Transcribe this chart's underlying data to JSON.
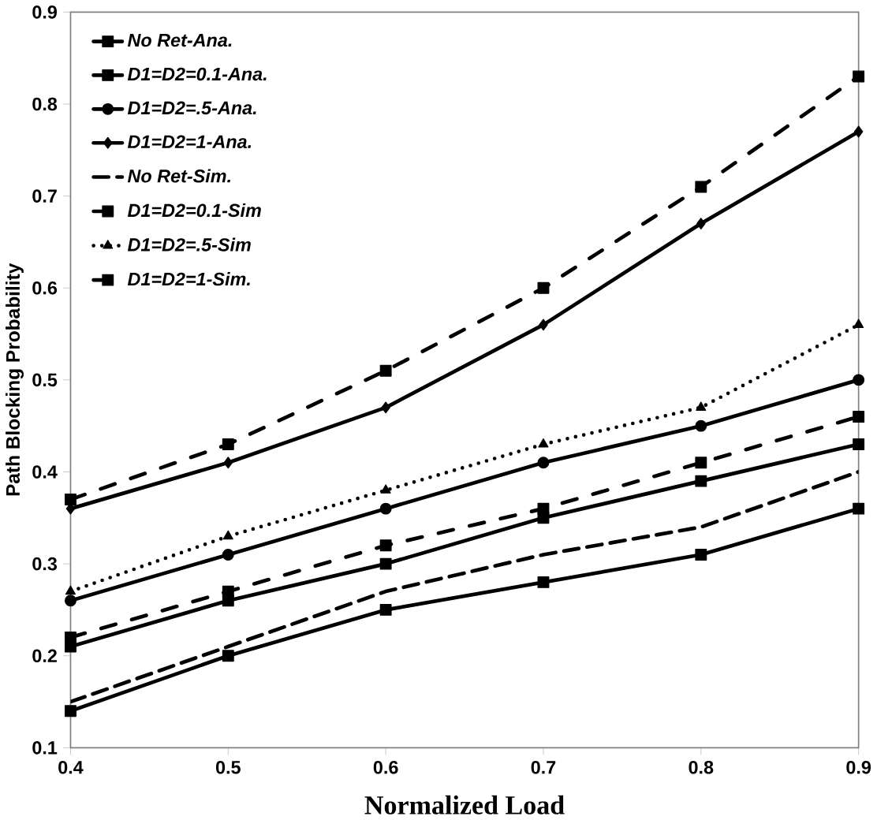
{
  "chart_data": {
    "type": "line",
    "xlabel": "Normalized  Load",
    "ylabel": "Path Blocking Probability",
    "x": [
      0.4,
      0.5,
      0.6,
      0.7,
      0.8,
      0.9
    ],
    "xlim": [
      0.4,
      0.9
    ],
    "ylim": [
      0.1,
      0.9
    ],
    "xticks": [
      0.4,
      0.5,
      0.6,
      0.7,
      0.8,
      0.9
    ],
    "yticks": [
      0.1,
      0.2,
      0.3,
      0.4,
      0.5,
      0.6,
      0.7,
      0.8,
      0.9
    ],
    "grid": false,
    "legend": "top left",
    "series": [
      {
        "name": "No Ret-Ana.",
        "color": "#000000",
        "marker": "square",
        "line_style": "solid",
        "values": [
          0.14,
          0.2,
          0.25,
          0.28,
          0.31,
          0.36
        ]
      },
      {
        "name": "D1=D2=0.1-Ana.",
        "color": "#000000",
        "marker": "square",
        "line_style": "solid",
        "values": [
          0.21,
          0.26,
          0.3,
          0.35,
          0.39,
          0.43
        ]
      },
      {
        "name": "D1=D2=.5-Ana.",
        "color": "#000000",
        "marker": "circle",
        "line_style": "solid",
        "values": [
          0.26,
          0.31,
          0.36,
          0.41,
          0.45,
          0.5
        ]
      },
      {
        "name": "D1=D2=1-Ana.",
        "color": "#000000",
        "marker": "diamond",
        "line_style": "solid",
        "values": [
          0.36,
          0.41,
          0.47,
          0.56,
          0.67,
          0.77
        ]
      },
      {
        "name": "No Ret-Sim.",
        "color": "#000000",
        "marker": "none",
        "line_style": "dashed",
        "values": [
          0.15,
          0.21,
          0.27,
          0.31,
          0.34,
          0.4
        ]
      },
      {
        "name": "D1=D2=0.1-Sim",
        "color": "#000000",
        "marker": "square",
        "line_style": "dashdot",
        "values": [
          0.22,
          0.27,
          0.32,
          0.36,
          0.41,
          0.46
        ]
      },
      {
        "name": "D1=D2=.5-Sim",
        "color": "#000000",
        "marker": "triangle",
        "line_style": "dotted",
        "values": [
          0.27,
          0.33,
          0.38,
          0.43,
          0.47,
          0.56
        ]
      },
      {
        "name": "D1=D2=1-Sim.",
        "color": "#000000",
        "marker": "square",
        "line_style": "dashdot",
        "values": [
          0.37,
          0.43,
          0.51,
          0.6,
          0.71,
          0.83
        ]
      }
    ]
  }
}
